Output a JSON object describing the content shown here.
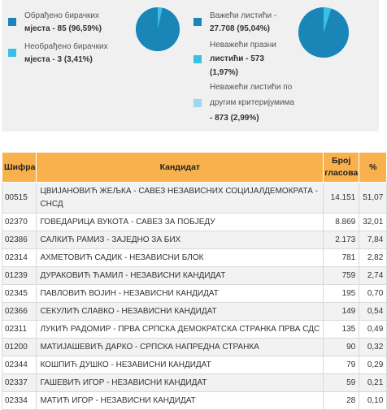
{
  "stats": {
    "processed_label": "Обрађено бирачких",
    "processed_value": "мјеста - 85 (96,59%)",
    "unprocessed_label": "Необрађено бирачких",
    "unprocessed_value": "мјеста - 3 (3,41%)",
    "valid_label": "Важећи листићи -",
    "valid_value": "27.708 (95,04%)",
    "invalid_empty_label": "Неважећи празни",
    "invalid_empty_line2": "листићи - 573",
    "invalid_empty_pct": "(1,97%)",
    "invalid_other_line1": "Неважећи листићи по",
    "invalid_other_line2": "другим критеријумима",
    "invalid_other_line3": "- 873 (2,99%)",
    "pie1_fraction": 0.9659,
    "pie2_fraction": 0.9504,
    "colors": {
      "dark": "#1a86b8",
      "light": "#3bbfe6",
      "lighter": "#9adaf0"
    }
  },
  "table": {
    "headers": {
      "code": "Шифра",
      "candidate": "Кандидат",
      "votes_line1": "Број",
      "votes_line2": "гласова",
      "percent": "%"
    },
    "rows": [
      {
        "code": "00515",
        "candidate_line1": "ЦВИЈАНОВИЋ ЖЕЉКА - САВЕЗ НЕЗАВИСНИХ СОЦИЈАЛДЕМОКРАТА -",
        "candidate_line2": "СНСД",
        "votes": "14.151",
        "percent": "51,07"
      },
      {
        "code": "02370",
        "candidate_line1": "ГОВЕДАРИЦА ВУКОТА - САВЕЗ ЗА ПОБЈЕДУ",
        "votes": "8.869",
        "percent": "32,01"
      },
      {
        "code": "02386",
        "candidate_line1": "САЛКИЋ РАМИЗ - ЗАЈЕДНО ЗА БИХ",
        "votes": "2.173",
        "percent": "7,84"
      },
      {
        "code": "02314",
        "candidate_line1": "АХМЕТОВИЋ САДИК - НЕЗАВИСНИ БЛОК",
        "votes": "781",
        "percent": "2,82"
      },
      {
        "code": "01239",
        "candidate_line1": "ДУРАКОВИЋ ЋАМИЛ - НЕЗАВИСНИ КАНДИДАТ",
        "votes": "759",
        "percent": "2,74"
      },
      {
        "code": "02345",
        "candidate_line1": "ПАВЛОВИЋ ВОЈИН - НЕЗАВИСНИ КАНДИДАТ",
        "votes": "195",
        "percent": "0,70"
      },
      {
        "code": "02366",
        "candidate_line1": "СЕКУЛИЋ СЛАВКО - НЕЗАВИСНИ КАНДИДАТ",
        "votes": "149",
        "percent": "0,54"
      },
      {
        "code": "02311",
        "candidate_line1": "ЛУКИЋ РАДОМИР - ПРВА СРПСКА ДЕМОКРАТСКА СТРАНКА ПРВА СДС",
        "votes": "135",
        "percent": "0,49"
      },
      {
        "code": "01200",
        "candidate_line1": "МАТИЈАШЕВИЋ ДАРКО - СРПСКА НАПРЕДНА СТРАНКА",
        "votes": "90",
        "percent": "0,32"
      },
      {
        "code": "02344",
        "candidate_line1": "КОШПИЋ ДУШКО - НЕЗАВИСНИ КАНДИДАТ",
        "votes": "79",
        "percent": "0,29"
      },
      {
        "code": "02337",
        "candidate_line1": "ГАШЕВИЋ ИГОР - НЕЗАВИСНИ КАНДИДАТ",
        "votes": "59",
        "percent": "0,21"
      },
      {
        "code": "02334",
        "candidate_line1": "МАТИЋ ИГОР - НЕЗАВИСНИ КАНДИДАТ",
        "votes": "28",
        "percent": "0,10"
      }
    ]
  }
}
